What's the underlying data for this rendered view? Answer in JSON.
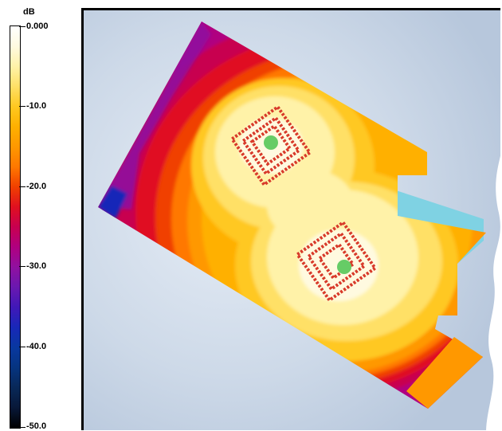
{
  "legend": {
    "unit": "dB",
    "ticks": [
      {
        "value": 0.0,
        "label": "0.000"
      },
      {
        "value": -10.0,
        "label": "-10.0"
      },
      {
        "value": -20.0,
        "label": "-20.0"
      },
      {
        "value": -30.0,
        "label": "-30.0"
      },
      {
        "value": -40.0,
        "label": "-40.0"
      },
      {
        "value": -50.0,
        "label": "-50.0"
      }
    ],
    "range": [
      -50.0,
      0.0
    ],
    "colors": [
      {
        "level": 0,
        "color": "#ffffff"
      },
      {
        "level": -2.5,
        "color": "#fffae0"
      },
      {
        "level": -5,
        "color": "#fff2a8"
      },
      {
        "level": -7.5,
        "color": "#ffe066"
      },
      {
        "level": -10,
        "color": "#ffc820"
      },
      {
        "level": -12.5,
        "color": "#ffb000"
      },
      {
        "level": -15,
        "color": "#ff9800"
      },
      {
        "level": -17.5,
        "color": "#ff7800"
      },
      {
        "level": -20,
        "color": "#f04000"
      },
      {
        "level": -22.5,
        "color": "#e01020"
      },
      {
        "level": -25,
        "color": "#c80050"
      },
      {
        "level": -27.5,
        "color": "#b00080"
      },
      {
        "level": -30,
        "color": "#9010a0"
      },
      {
        "level": -32.5,
        "color": "#6a18b0"
      },
      {
        "level": -35,
        "color": "#4018b8"
      },
      {
        "level": -37.5,
        "color": "#1828b8"
      },
      {
        "level": -40,
        "color": "#0838a0"
      },
      {
        "level": -42.5,
        "color": "#063480"
      },
      {
        "level": -45,
        "color": "#082858"
      },
      {
        "level": -47.5,
        "color": "#081838"
      },
      {
        "level": -50,
        "color": "#000000"
      }
    ]
  },
  "map": {
    "background_color": "#c9d6e6",
    "outside_color": "#ffffff",
    "marker_color": "#d83a2a",
    "source_color": "#66cc66",
    "low_region_color": "#79cde0"
  }
}
